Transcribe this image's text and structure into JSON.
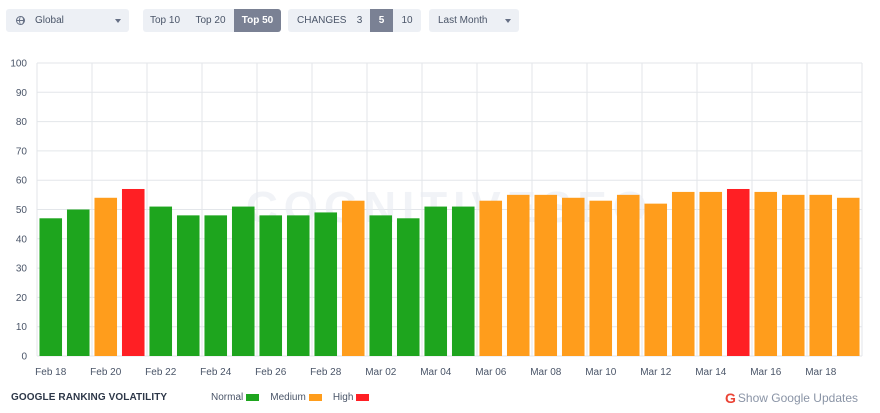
{
  "controls": {
    "region": "Global",
    "top": [
      {
        "label": "Top 10",
        "active": false
      },
      {
        "label": "Top 20",
        "active": false
      },
      {
        "label": "Top 50",
        "active": true
      }
    ],
    "changes_label": "CHANGES",
    "changes": [
      {
        "label": "3",
        "active": false
      },
      {
        "label": "5",
        "active": true
      },
      {
        "label": "10",
        "active": false
      }
    ],
    "period": "Last Month"
  },
  "watermark": "COGNITIVESEO",
  "footer": {
    "title": "GOOGLE RANKING VOLATILITY",
    "legend": [
      {
        "label": "Normal",
        "color": "#1ea51e"
      },
      {
        "label": "Medium",
        "color": "#ff9d1c"
      },
      {
        "label": "High",
        "color": "#ff1f24"
      }
    ],
    "google_icon": "G",
    "google_updates": "Show Google Updates"
  },
  "chart_data": {
    "type": "bar",
    "title": "",
    "xlabel": "",
    "ylabel": "",
    "ylim": [
      0,
      100
    ],
    "yticks": [
      0,
      10,
      20,
      30,
      40,
      50,
      60,
      70,
      80,
      90,
      100
    ],
    "grid": true,
    "colors": {
      "normal": "#1ea51e",
      "medium": "#ff9d1c",
      "high": "#ff1f24"
    },
    "categories": [
      "Feb 18",
      "Feb 19",
      "Feb 20",
      "Feb 21",
      "Feb 22",
      "Feb 23",
      "Feb 24",
      "Feb 25",
      "Feb 26",
      "Feb 27",
      "Feb 28",
      "Mar 01",
      "Mar 02",
      "Mar 03",
      "Mar 04",
      "Mar 05",
      "Mar 06",
      "Mar 07",
      "Mar 08",
      "Mar 09",
      "Mar 10",
      "Mar 11",
      "Mar 12",
      "Mar 13",
      "Mar 14",
      "Mar 15",
      "Mar 16",
      "Mar 17",
      "Mar 18",
      "Mar 19"
    ],
    "tick_labels": [
      "Feb 18",
      "Feb 20",
      "Feb 22",
      "Feb 24",
      "Feb 26",
      "Feb 28",
      "Mar 02",
      "Mar 04",
      "Mar 06",
      "Mar 08",
      "Mar 10",
      "Mar 12",
      "Mar 14",
      "Mar 16",
      "Mar 18"
    ],
    "values": [
      47,
      50,
      54,
      57,
      51,
      48,
      48,
      51,
      48,
      48,
      49,
      53,
      48,
      47,
      51,
      51,
      53,
      55,
      55,
      54,
      53,
      55,
      52,
      56,
      56,
      57,
      56,
      55,
      55,
      54
    ],
    "levels": [
      "normal",
      "normal",
      "medium",
      "high",
      "normal",
      "normal",
      "normal",
      "normal",
      "normal",
      "normal",
      "normal",
      "medium",
      "normal",
      "normal",
      "normal",
      "normal",
      "medium",
      "medium",
      "medium",
      "medium",
      "medium",
      "medium",
      "medium",
      "medium",
      "medium",
      "high",
      "medium",
      "medium",
      "medium",
      "medium"
    ]
  }
}
